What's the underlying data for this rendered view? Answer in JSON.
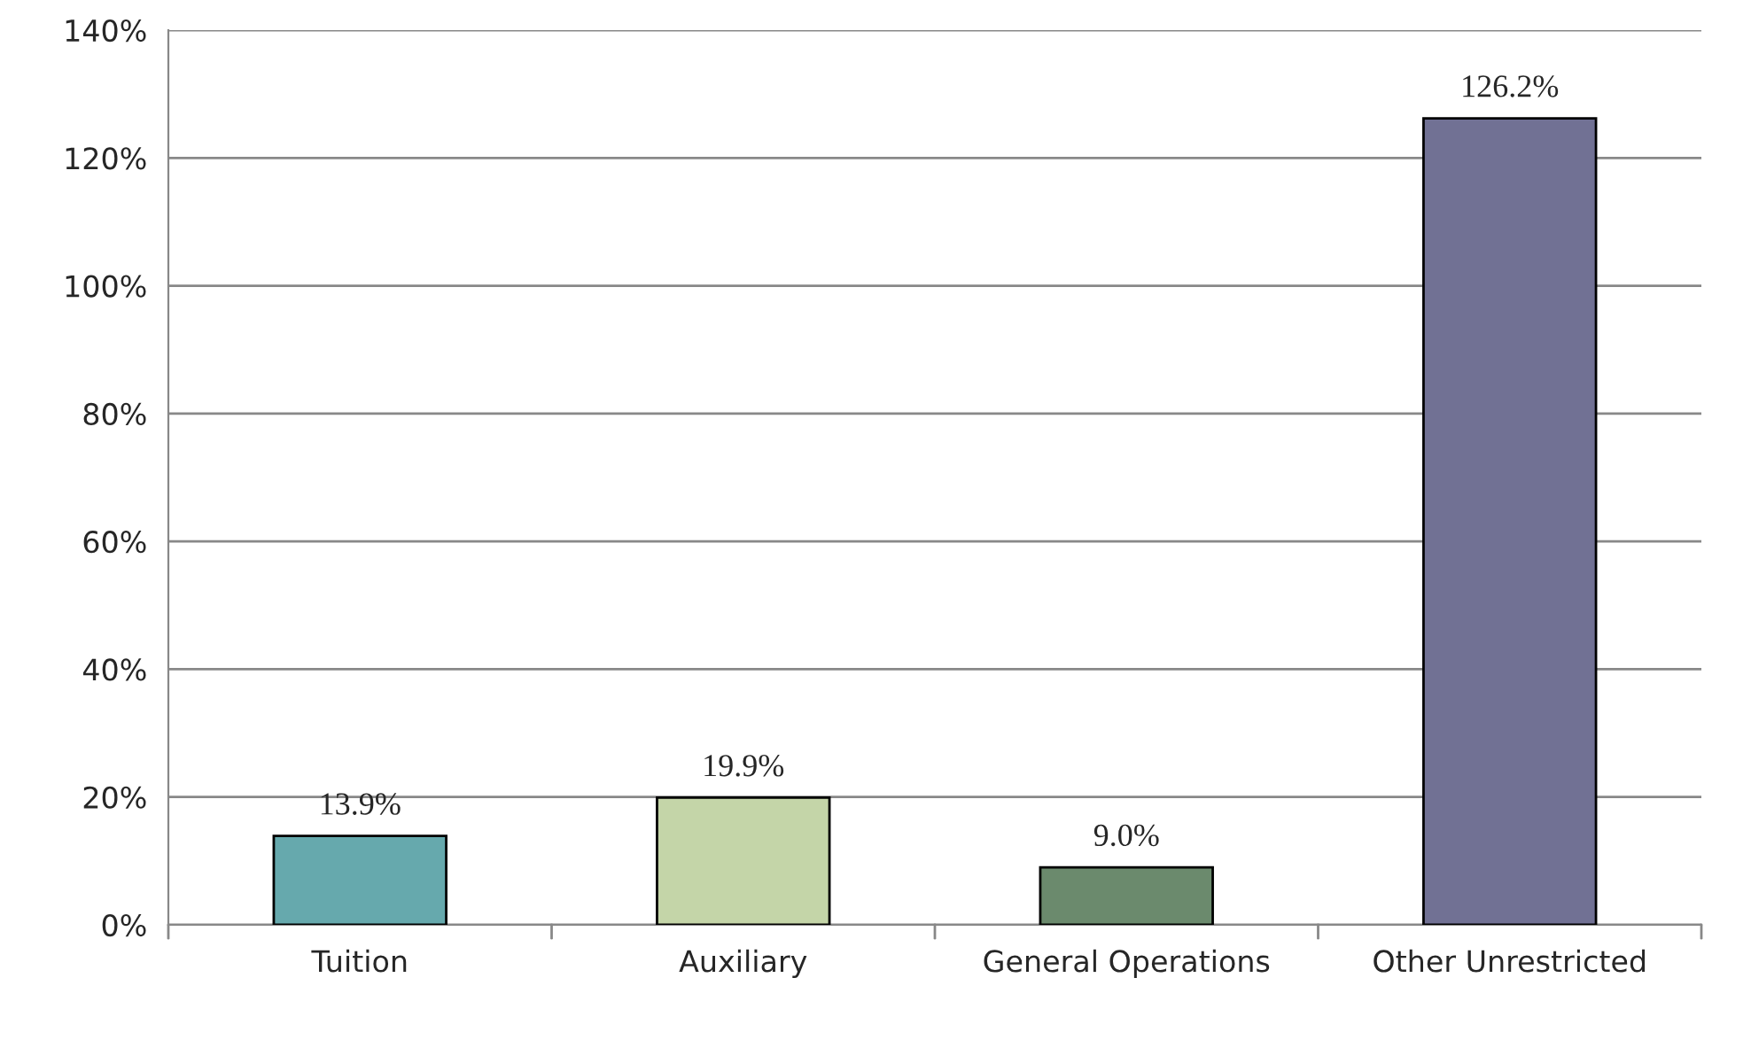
{
  "chart_data": {
    "type": "bar",
    "categories": [
      "Tuition",
      "Auxiliary",
      "General Operations",
      "Other Unrestricted"
    ],
    "values": [
      13.9,
      19.9,
      9.0,
      126.2
    ],
    "colors": [
      "#66a9ad",
      "#c4d5a8",
      "#6b8a6d",
      "#717194"
    ],
    "value_labels": [
      "13.9%",
      "19.9%",
      "9.0%",
      "126.2%"
    ],
    "ylim": [
      0,
      140
    ],
    "yticks": [
      {
        "value": 0,
        "label": "0%"
      },
      {
        "value": 20,
        "label": "20%"
      },
      {
        "value": 40,
        "label": "40%"
      },
      {
        "value": 60,
        "label": "60%"
      },
      {
        "value": 80,
        "label": "80%"
      },
      {
        "value": 100,
        "label": "100%"
      },
      {
        "value": 120,
        "label": "120%"
      },
      {
        "value": 140,
        "label": "140%"
      }
    ],
    "grid": "y",
    "legend": false
  }
}
